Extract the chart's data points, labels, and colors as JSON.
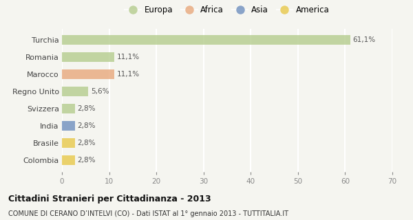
{
  "categories": [
    "Turchia",
    "Romania",
    "Marocco",
    "Regno Unito",
    "Svizzera",
    "India",
    "Brasile",
    "Colombia"
  ],
  "values": [
    61.1,
    11.1,
    11.1,
    5.6,
    2.8,
    2.8,
    2.8,
    2.8
  ],
  "labels": [
    "61,1%",
    "11,1%",
    "11,1%",
    "5,6%",
    "2,8%",
    "2,8%",
    "2,8%",
    "2,8%"
  ],
  "bar_colors": [
    "#b5cc8e",
    "#b5cc8e",
    "#e8a87c",
    "#b5cc8e",
    "#b5cc8e",
    "#6e8fbf",
    "#e8c84a",
    "#e8c84a"
  ],
  "legend_labels": [
    "Europa",
    "Africa",
    "Asia",
    "America"
  ],
  "legend_colors": [
    "#b5cc8e",
    "#e8a87c",
    "#6e8fbf",
    "#e8c84a"
  ],
  "xlim": [
    0,
    70
  ],
  "xticks": [
    0,
    10,
    20,
    30,
    40,
    50,
    60,
    70
  ],
  "title": "Cittadini Stranieri per Cittadinanza - 2013",
  "subtitle": "COMUNE DI CERANO D’INTELVI (CO) - Dati ISTAT al 1° gennaio 2013 - TUTTITALIA.IT",
  "background_color": "#f5f5f0",
  "grid_color": "#ffffff",
  "bar_alpha": 0.8
}
